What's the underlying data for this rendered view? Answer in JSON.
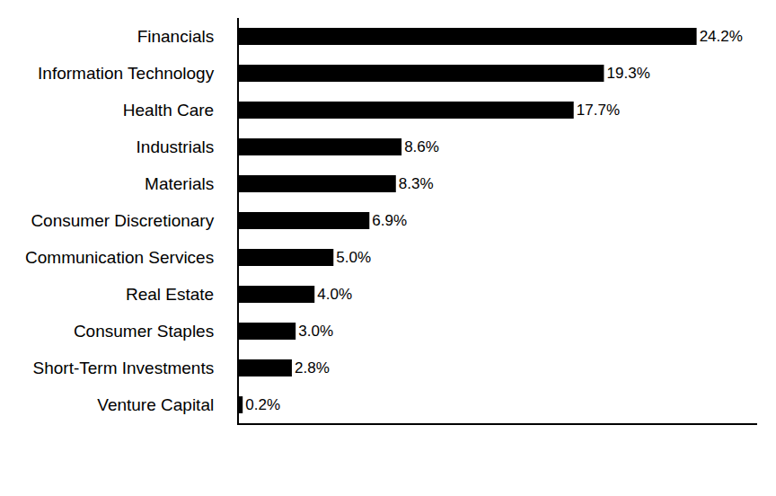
{
  "chart_data": {
    "type": "bar",
    "orientation": "horizontal",
    "categories": [
      "Financials",
      "Information Technology",
      "Health Care",
      "Industrials",
      "Materials",
      "Consumer Discretionary",
      "Communication Services",
      "Real Estate",
      "Consumer Staples",
      "Short-Term Investments",
      "Venture Capital"
    ],
    "values": [
      24.2,
      19.3,
      17.7,
      8.6,
      8.3,
      6.9,
      5.0,
      4.0,
      3.0,
      2.8,
      0.2
    ],
    "value_labels": [
      "24.2%",
      "19.3%",
      "17.7%",
      "8.6%",
      "8.3%",
      "6.9%",
      "5.0%",
      "4.0%",
      "3.0%",
      "2.8%",
      "0.2%"
    ],
    "color": "#000000",
    "xlim": [
      0,
      27.4
    ],
    "data_labels": true,
    "tick_labels": "y",
    "grid": false
  }
}
